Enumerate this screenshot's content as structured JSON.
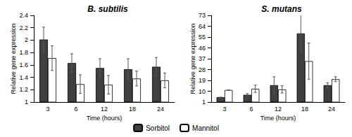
{
  "chart_data": [
    {
      "type": "bar",
      "title": "B. subtilis",
      "xlabel": "Time (hours)",
      "ylabel": "Relative gene expression",
      "categories": [
        "3",
        "6",
        "12",
        "18",
        "24"
      ],
      "series": [
        {
          "name": "Sorbitol",
          "color": "#404040",
          "values": [
            2.01,
            1.63,
            1.55,
            1.53,
            1.57
          ],
          "errors": [
            0.2,
            0.15,
            0.15,
            0.17,
            0.15
          ]
        },
        {
          "name": "Mannitol",
          "color": "#ffffff",
          "values": [
            1.71,
            1.29,
            1.28,
            1.38,
            1.35
          ],
          "errors": [
            0.2,
            0.15,
            0.15,
            0.12,
            0.12
          ]
        }
      ],
      "ylim": [
        1,
        2.4
      ],
      "yticks": [
        1,
        1.2,
        1.4,
        1.6,
        1.8,
        2,
        2.2,
        2.4
      ],
      "grid": false,
      "legend": "bottom"
    },
    {
      "type": "bar",
      "title": "S. mutans",
      "xlabel": "Time (hours)",
      "ylabel": "Relative gene expression",
      "categories": [
        "3",
        "6",
        "12",
        "18",
        "24"
      ],
      "series": [
        {
          "name": "Sorbitol",
          "color": "#404040",
          "values": [
            5,
            7,
            15,
            58,
            15
          ],
          "errors": [
            0,
            1,
            7,
            16,
            2
          ]
        },
        {
          "name": "Mannitol",
          "color": "#ffffff",
          "values": [
            11,
            12,
            11.5,
            35,
            20
          ],
          "errors": [
            0,
            3,
            3,
            15,
            2
          ]
        }
      ],
      "ylim": [
        1,
        73
      ],
      "yticks": [
        1,
        10,
        19,
        28,
        37,
        46,
        55,
        64,
        73
      ],
      "grid": false
    }
  ]
}
